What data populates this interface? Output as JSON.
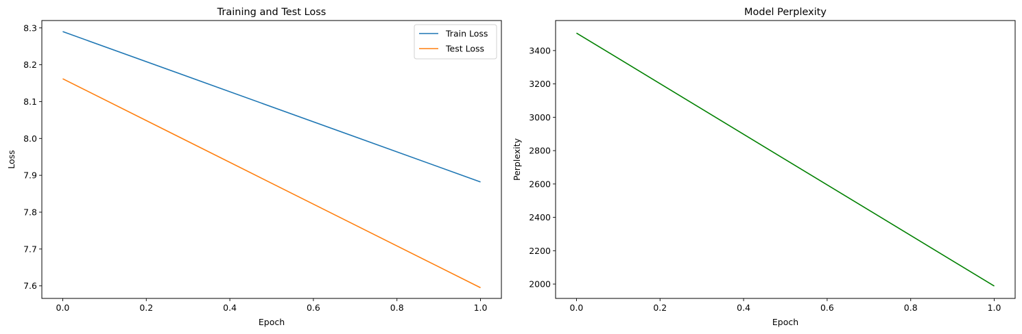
{
  "chart_data": [
    {
      "type": "line",
      "title": "Training and Test Loss",
      "xlabel": "Epoch",
      "ylabel": "Loss",
      "xlim": [
        -0.05,
        1.05
      ],
      "ylim": [
        7.566,
        8.32
      ],
      "xticks": [
        0.0,
        0.2,
        0.4,
        0.6,
        0.8,
        1.0
      ],
      "xtick_labels": [
        "0.0",
        "0.2",
        "0.4",
        "0.6",
        "0.8",
        "1.0"
      ],
      "yticks": [
        7.6,
        7.7,
        7.8,
        7.9,
        8.0,
        8.1,
        8.2,
        8.3
      ],
      "ytick_labels": [
        "7.6",
        "7.7",
        "7.8",
        "7.9",
        "8.0",
        "8.1",
        "8.2",
        "8.3"
      ],
      "grid": false,
      "legend": "top-right",
      "x": [
        0,
        1
      ],
      "series": [
        {
          "name": "Train Loss",
          "values": [
            8.29,
            7.882
          ],
          "color": "#1f77b4"
        },
        {
          "name": "Test Loss",
          "values": [
            8.162,
            7.595
          ],
          "color": "#ff7f0e"
        }
      ]
    },
    {
      "type": "line",
      "title": "Model Perplexity",
      "xlabel": "Epoch",
      "ylabel": "Perplexity",
      "xlim": [
        -0.05,
        1.05
      ],
      "ylim": [
        1914,
        3580
      ],
      "xticks": [
        0.0,
        0.2,
        0.4,
        0.6,
        0.8,
        1.0
      ],
      "xtick_labels": [
        "0.0",
        "0.2",
        "0.4",
        "0.6",
        "0.8",
        "1.0"
      ],
      "yticks": [
        2000,
        2200,
        2400,
        2600,
        2800,
        3000,
        3200,
        3400
      ],
      "ytick_labels": [
        "2000",
        "2200",
        "2400",
        "2600",
        "2800",
        "3000",
        "3200",
        "3400"
      ],
      "grid": false,
      "legend": "none",
      "x": [
        0,
        1
      ],
      "series": [
        {
          "values": [
            3505,
            1988
          ],
          "color": "#008000"
        }
      ]
    }
  ]
}
